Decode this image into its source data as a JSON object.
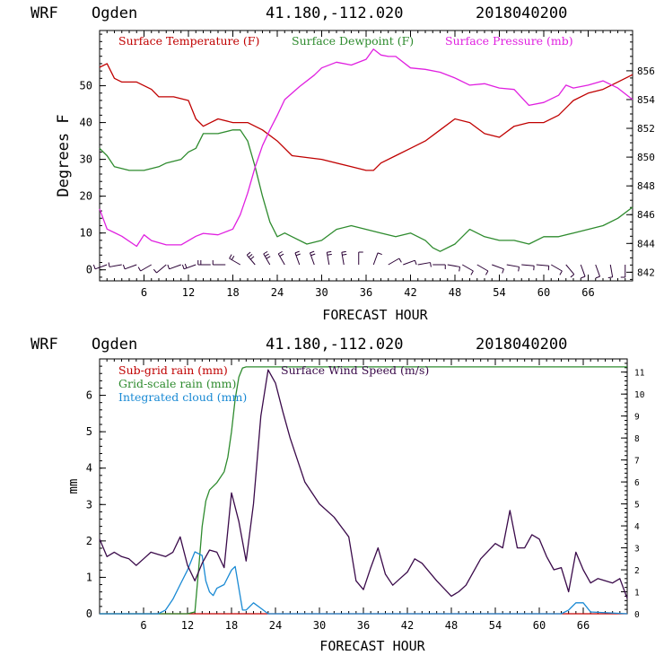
{
  "header": {
    "model": "WRF",
    "site": "Ogden",
    "coords": "41.180,-112.020",
    "init": "2018040200"
  },
  "colors": {
    "temperature": "#c00000",
    "dewpoint": "#2e8b2e",
    "pressure": "#e020e0",
    "subgrid": "#c00000",
    "gridscale": "#2e8b2e",
    "cloud": "#1a8ad4",
    "wind": "#3a0a4a",
    "barb": "#2a0035"
  },
  "chart_data": [
    {
      "type": "line",
      "title": "WRF Ogden 41.180,-112.020 2018040200",
      "xlabel": "FORECAST HOUR",
      "ylabel": "Degrees F",
      "y2label": "mb",
      "xlim": [
        0,
        72
      ],
      "ylim": [
        -3,
        65
      ],
      "y2lim": [
        841.4,
        858.8
      ],
      "x_ticks": [
        "6",
        "12",
        "18",
        "24",
        "30",
        "36",
        "42",
        "48",
        "54",
        "60",
        "66"
      ],
      "y_ticks": [
        "0",
        "10",
        "20",
        "30",
        "40",
        "50"
      ],
      "y2_ticks": [
        "842",
        "844",
        "846",
        "848",
        "850",
        "852",
        "854",
        "856"
      ],
      "legend": [
        "Surface Temperature (F)",
        "Surface Dewpoint (F)",
        "Surface Pressure (mb)"
      ],
      "series": [
        {
          "name": "Surface Temperature (F)",
          "axis": "left",
          "x": [
            0,
            1,
            2,
            3,
            5,
            7,
            8,
            9,
            10,
            12,
            13,
            14,
            15,
            16,
            18,
            20,
            22,
            24,
            26,
            30,
            34,
            36,
            37,
            38,
            40,
            42,
            44,
            46,
            48,
            50,
            52,
            54,
            56,
            58,
            60,
            62,
            64,
            66,
            68,
            70,
            72
          ],
          "values": [
            55,
            56,
            52,
            51,
            51,
            49,
            47,
            47,
            47,
            46,
            41,
            39,
            40,
            41,
            40,
            40,
            38,
            35,
            31,
            30,
            28,
            27,
            27,
            29,
            31,
            33,
            35,
            38,
            41,
            40,
            37,
            36,
            39,
            40,
            40,
            42,
            46,
            48,
            49,
            51,
            53
          ]
        },
        {
          "name": "Surface Dewpoint (F)",
          "axis": "left",
          "x": [
            0,
            1,
            2,
            4,
            6,
            8,
            9,
            11,
            12,
            13,
            14,
            16,
            18,
            19,
            20,
            21,
            22,
            23,
            24,
            25,
            26,
            28,
            30,
            32,
            34,
            36,
            38,
            40,
            42,
            44,
            45,
            46,
            48,
            50,
            52,
            54,
            56,
            58,
            60,
            62,
            64,
            66,
            68,
            70,
            72
          ],
          "values": [
            33,
            31,
            28,
            27,
            27,
            28,
            29,
            30,
            32,
            33,
            37,
            37,
            38,
            38,
            35,
            28,
            20,
            13,
            9,
            10,
            9,
            7,
            8,
            11,
            12,
            11,
            10,
            9,
            10,
            8,
            6,
            5,
            7,
            11,
            9,
            8,
            8,
            7,
            9,
            9,
            10,
            11,
            12,
            14,
            17
          ]
        },
        {
          "name": "Surface Pressure (mb)",
          "axis": "right",
          "x": [
            0,
            1,
            3,
            5,
            6,
            7,
            9,
            11,
            13,
            14,
            16,
            18,
            19,
            20,
            21,
            22,
            23,
            24,
            25,
            27,
            29,
            30,
            32,
            34,
            36,
            37,
            38,
            39,
            40,
            42,
            44,
            46,
            48,
            50,
            52,
            54,
            56,
            58,
            60,
            62,
            63,
            64,
            66,
            68,
            70,
            72
          ],
          "values": [
            846.4,
            845.0,
            844.5,
            843.8,
            844.6,
            844.2,
            843.9,
            843.9,
            844.5,
            844.7,
            844.6,
            845.0,
            846.0,
            847.5,
            849.3,
            850.8,
            851.9,
            852.9,
            854.0,
            854.9,
            855.7,
            856.2,
            856.6,
            856.4,
            856.8,
            857.5,
            857.1,
            857.0,
            857.0,
            856.2,
            856.1,
            855.9,
            855.5,
            855.0,
            855.1,
            854.8,
            854.7,
            853.6,
            853.8,
            854.3,
            855.0,
            854.8,
            855.0,
            855.3,
            854.8,
            854.0
          ]
        }
      ],
      "wind_barbs": {
        "label": "Surface wind barbs",
        "x": [
          1,
          3,
          5,
          7,
          9,
          11,
          13,
          15,
          17,
          19,
          21,
          23,
          25,
          27,
          29,
          31,
          33,
          35,
          37,
          39,
          41,
          43,
          45,
          47,
          49,
          51,
          53,
          55,
          57,
          59,
          61,
          63,
          65,
          67,
          69,
          71
        ],
        "direction_deg": [
          250,
          260,
          250,
          240,
          230,
          250,
          250,
          270,
          270,
          300,
          320,
          330,
          330,
          340,
          340,
          350,
          350,
          0,
          20,
          60,
          70,
          80,
          90,
          100,
          120,
          120,
          110,
          100,
          95,
          95,
          120,
          140,
          160,
          160,
          170,
          180
        ],
        "speed": [
          3,
          3,
          4,
          4,
          3,
          3,
          5,
          5,
          4,
          6,
          8,
          8,
          7,
          6,
          5,
          5,
          5,
          4,
          3,
          3,
          4,
          4,
          3,
          3,
          3,
          3,
          4,
          3,
          3,
          3,
          4,
          4,
          3,
          3,
          3,
          3
        ]
      }
    },
    {
      "type": "line",
      "title": "WRF Ogden 41.180,-112.020 2018040200",
      "xlabel": "FORECAST HOUR",
      "ylabel": "mm",
      "y2label": "m/s",
      "xlim": [
        0,
        72
      ],
      "ylim": [
        0,
        7
      ],
      "y2lim": [
        0,
        11.6
      ],
      "x_ticks": [
        "6",
        "12",
        "18",
        "24",
        "30",
        "36",
        "42",
        "48",
        "54",
        "60",
        "66"
      ],
      "y_ticks": [
        "0",
        "1",
        "2",
        "3",
        "4",
        "5",
        "6"
      ],
      "y2_ticks": [
        "0",
        "1",
        "2",
        "3",
        "4",
        "5",
        "6",
        "7",
        "8",
        "9",
        "10",
        "11"
      ],
      "legend": [
        "Sub-grid rain (mm)",
        "Grid-scale rain (mm)",
        "Integrated cloud (mm)",
        "Surface Wind Speed (m/s)"
      ],
      "series": [
        {
          "name": "Sub-grid rain (mm)",
          "axis": "left",
          "x": [
            0,
            72
          ],
          "values": [
            0,
            0
          ]
        },
        {
          "name": "Grid-scale rain (mm)",
          "axis": "left",
          "x": [
            0,
            12,
            13,
            13.5,
            14,
            14.5,
            15,
            16,
            17,
            17.5,
            18,
            18.5,
            19,
            19.5,
            20,
            72
          ],
          "values": [
            0,
            0,
            0.05,
            1.2,
            2.4,
            3.1,
            3.4,
            3.6,
            3.9,
            4.3,
            5.0,
            5.9,
            6.5,
            6.75,
            6.78,
            6.78
          ]
        },
        {
          "name": "Integrated cloud (mm)",
          "axis": "left",
          "x": [
            0,
            8,
            9,
            10,
            11,
            12,
            13,
            14,
            14.5,
            15,
            15.5,
            16,
            17,
            18,
            18.5,
            19,
            19.5,
            20,
            21,
            22,
            23,
            24,
            63,
            64,
            65,
            66,
            67,
            72
          ],
          "values": [
            0,
            0,
            0.1,
            0.4,
            0.8,
            1.2,
            1.7,
            1.6,
            0.9,
            0.6,
            0.5,
            0.7,
            0.8,
            1.2,
            1.3,
            0.7,
            0.1,
            0.1,
            0.3,
            0.15,
            0,
            0,
            0,
            0.1,
            0.3,
            0.3,
            0.05,
            0
          ]
        },
        {
          "name": "Surface Wind Speed (m/s)",
          "axis": "right",
          "x": [
            0,
            1,
            2,
            3,
            4,
            5,
            6,
            7,
            8,
            9,
            10,
            11,
            12,
            13,
            14,
            15,
            16,
            17,
            18,
            19,
            20,
            21,
            22,
            23,
            24,
            25,
            26,
            27,
            28,
            30,
            32,
            34,
            35,
            36,
            37,
            38,
            39,
            40,
            41,
            42,
            43,
            44,
            46,
            48,
            49,
            50,
            52,
            54,
            55,
            56,
            57,
            58,
            59,
            60,
            61,
            62,
            63,
            64,
            65,
            66,
            67,
            68,
            69,
            70,
            71,
            72
          ],
          "values": [
            3.4,
            2.6,
            2.8,
            2.6,
            2.5,
            2.2,
            2.5,
            2.8,
            2.7,
            2.6,
            2.8,
            3.5,
            2.2,
            1.5,
            2.3,
            2.9,
            2.8,
            2.1,
            5.5,
            4.2,
            2.4,
            5.0,
            9.0,
            11.1,
            10.5,
            9.2,
            8.0,
            7.0,
            6.0,
            5.0,
            4.4,
            3.5,
            1.5,
            1.1,
            2.1,
            3.0,
            1.8,
            1.3,
            1.6,
            1.9,
            2.5,
            2.3,
            1.5,
            0.8,
            1.0,
            1.3,
            2.5,
            3.2,
            3.0,
            4.7,
            3.0,
            3.0,
            3.6,
            3.4,
            2.6,
            2.0,
            2.1,
            1.0,
            2.8,
            2.0,
            1.4,
            1.6,
            1.5,
            1.4,
            1.6,
            0.7
          ]
        }
      ]
    }
  ]
}
